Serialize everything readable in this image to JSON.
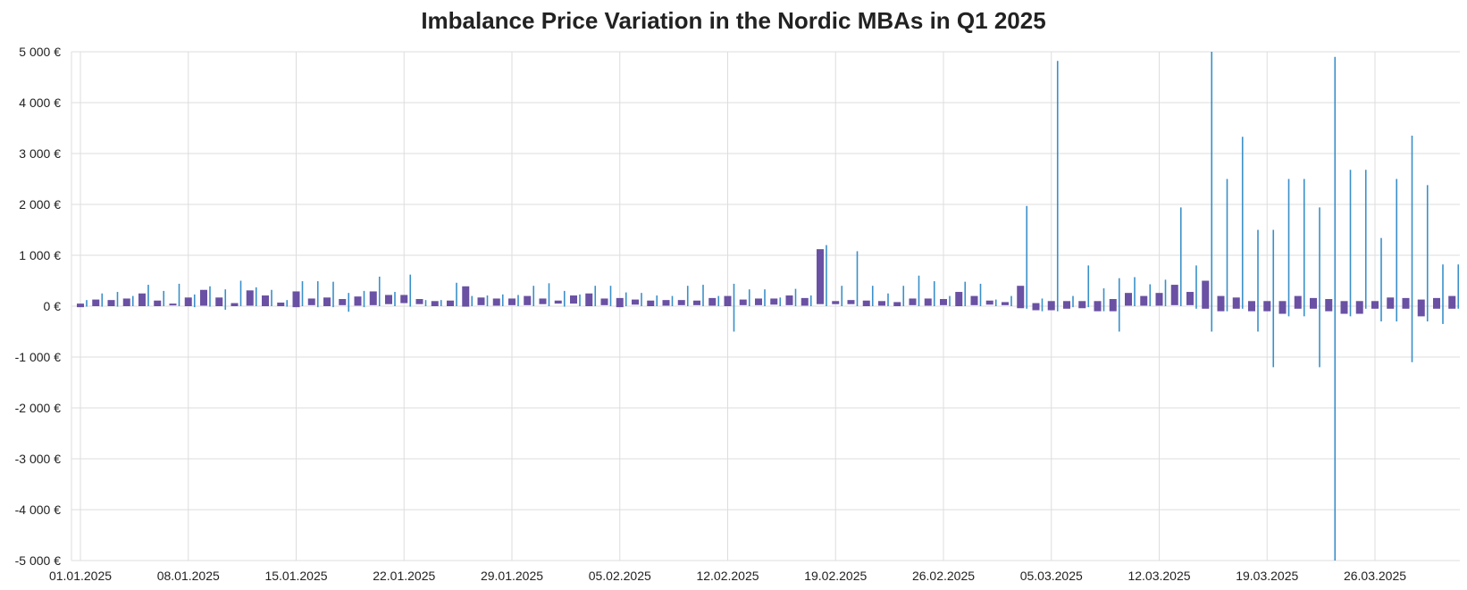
{
  "chart_data": {
    "type": "candlestick",
    "title": "Imbalance Price Variation in the Nordic MBAs in Q1 2025",
    "xlabel": "",
    "ylabel": "",
    "ylim": [
      -5000,
      5000
    ],
    "y_ticks": [
      -5000,
      -4000,
      -3000,
      -2000,
      -1000,
      0,
      1000,
      2000,
      3000,
      4000,
      5000
    ],
    "y_tick_labels": [
      "-5 000 €",
      "-4 000 €",
      "-3 000 €",
      "-2 000 €",
      "-1 000 €",
      "0 €",
      "1 000 €",
      "2 000 €",
      "3 000 €",
      "4 000 €",
      "5 000 €"
    ],
    "x_tick_labels": [
      "01.01.2025",
      "08.01.2025",
      "15.01.2025",
      "22.01.2025",
      "29.01.2025",
      "05.02.2025",
      "12.02.2025",
      "19.02.2025",
      "26.02.2025",
      "05.03.2025",
      "12.03.2025",
      "19.03.2025",
      "26.03.2025"
    ],
    "x_range": [
      "01.01.2025",
      "31.03.2025"
    ],
    "grid": true,
    "legend": "none",
    "colors": {
      "box": "#6a51a3",
      "whisker": "#3a8fc9",
      "grid": "#dddddd"
    },
    "series": [
      {
        "dates": [
          "01.01.2025",
          "02.01.2025",
          "03.01.2025",
          "04.01.2025",
          "05.01.2025",
          "06.01.2025",
          "07.01.2025",
          "08.01.2025",
          "09.01.2025",
          "10.01.2025",
          "11.01.2025",
          "12.01.2025",
          "13.01.2025",
          "14.01.2025",
          "15.01.2025",
          "16.01.2025",
          "17.01.2025",
          "18.01.2025",
          "19.01.2025",
          "20.01.2025",
          "21.01.2025",
          "22.01.2025",
          "23.01.2025",
          "24.01.2025",
          "25.01.2025",
          "26.01.2025",
          "27.01.2025",
          "28.01.2025",
          "29.01.2025",
          "30.01.2025",
          "31.01.2025",
          "01.02.2025",
          "02.02.2025",
          "03.02.2025",
          "04.02.2025",
          "05.02.2025",
          "06.02.2025",
          "07.02.2025",
          "08.02.2025",
          "09.02.2025",
          "10.02.2025",
          "11.02.2025",
          "12.02.2025",
          "13.02.2025",
          "14.02.2025",
          "15.02.2025",
          "16.02.2025",
          "17.02.2025",
          "18.02.2025",
          "19.02.2025",
          "20.02.2025",
          "21.02.2025",
          "22.02.2025",
          "23.02.2025",
          "24.02.2025",
          "25.02.2025",
          "26.02.2025",
          "27.02.2025",
          "28.02.2025",
          "01.03.2025",
          "02.03.2025",
          "03.03.2025",
          "04.03.2025",
          "05.03.2025",
          "06.03.2025",
          "07.03.2025",
          "08.03.2025",
          "09.03.2025",
          "10.03.2025",
          "11.03.2025",
          "12.03.2025",
          "13.03.2025",
          "14.03.2025",
          "15.03.2025",
          "16.03.2025",
          "17.03.2025",
          "18.03.2025",
          "19.03.2025",
          "20.03.2025",
          "21.03.2025",
          "22.03.2025",
          "23.03.2025",
          "24.03.2025",
          "25.03.2025",
          "26.03.2025",
          "27.03.2025",
          "28.03.2025",
          "29.03.2025",
          "30.03.2025",
          "31.03.2025"
        ],
        "low": [
          -10,
          -10,
          -10,
          0,
          0,
          0,
          0,
          -20,
          -10,
          -70,
          0,
          0,
          0,
          -10,
          0,
          -20,
          -20,
          -110,
          -20,
          0,
          0,
          -10,
          0,
          0,
          0,
          0,
          0,
          0,
          0,
          0,
          0,
          -10,
          0,
          0,
          0,
          0,
          0,
          0,
          0,
          0,
          0,
          0,
          -500,
          0,
          0,
          0,
          0,
          0,
          0,
          0,
          0,
          0,
          0,
          0,
          0,
          0,
          0,
          0,
          0,
          0,
          0,
          -50,
          -100,
          -100,
          -20,
          -20,
          -100,
          -500,
          0,
          0,
          0,
          0,
          -50,
          -500,
          -100,
          -50,
          -500,
          -1200,
          -200,
          -200,
          -1200,
          -5000,
          -200,
          -50,
          -300,
          -300,
          -1100,
          -300,
          -350,
          -50
        ],
        "q1": [
          -20,
          0,
          0,
          0,
          0,
          0,
          20,
          0,
          10,
          0,
          0,
          10,
          0,
          0,
          -20,
          20,
          0,
          20,
          10,
          20,
          40,
          60,
          40,
          0,
          0,
          -10,
          20,
          10,
          20,
          20,
          40,
          50,
          50,
          0,
          20,
          -20,
          30,
          0,
          10,
          20,
          20,
          10,
          0,
          20,
          20,
          30,
          20,
          10,
          40,
          40,
          40,
          0,
          10,
          0,
          20,
          10,
          20,
          0,
          20,
          30,
          20,
          -40,
          -80,
          -80,
          -50,
          -40,
          -100,
          -100,
          10,
          10,
          10,
          20,
          20,
          -50,
          -100,
          -50,
          -100,
          -100,
          -150,
          -50,
          -50,
          -100,
          -150,
          -150,
          -50,
          -50,
          -50,
          -200,
          -50,
          -50
        ],
        "q3": [
          50,
          130,
          120,
          150,
          250,
          110,
          50,
          170,
          320,
          170,
          60,
          310,
          210,
          70,
          290,
          150,
          170,
          140,
          190,
          290,
          220,
          220,
          140,
          100,
          110,
          390,
          170,
          150,
          150,
          200,
          150,
          110,
          210,
          250,
          150,
          160,
          130,
          110,
          120,
          120,
          110,
          160,
          200,
          130,
          150,
          150,
          210,
          160,
          1120,
          100,
          120,
          110,
          100,
          80,
          150,
          150,
          140,
          280,
          200,
          110,
          80,
          400,
          60,
          100,
          100,
          100,
          100,
          140,
          260,
          200,
          260,
          420,
          280,
          500,
          200,
          170,
          100,
          100,
          100,
          200,
          160,
          140,
          100,
          100,
          100,
          170,
          160,
          130,
          160,
          200
        ],
        "high": [
          120,
          250,
          280,
          200,
          420,
          300,
          440,
          230,
          390,
          330,
          500,
          370,
          320,
          120,
          490,
          490,
          480,
          260,
          300,
          580,
          280,
          620,
          120,
          120,
          460,
          200,
          210,
          230,
          220,
          400,
          450,
          300,
          230,
          400,
          400,
          270,
          260,
          210,
          200,
          400,
          420,
          200,
          440,
          330,
          330,
          170,
          340,
          210,
          1200,
          400,
          1080,
          400,
          250,
          400,
          600,
          490,
          200,
          480,
          440,
          130,
          200,
          1970,
          150,
          4820,
          200,
          800,
          350,
          550,
          570,
          430,
          520,
          1940,
          800,
          5000,
          2500,
          3330,
          1500,
          1500,
          2500,
          2500,
          1940,
          4900,
          2680,
          2680,
          1340,
          2500,
          3350,
          2380,
          820,
          820
        ]
      }
    ]
  }
}
